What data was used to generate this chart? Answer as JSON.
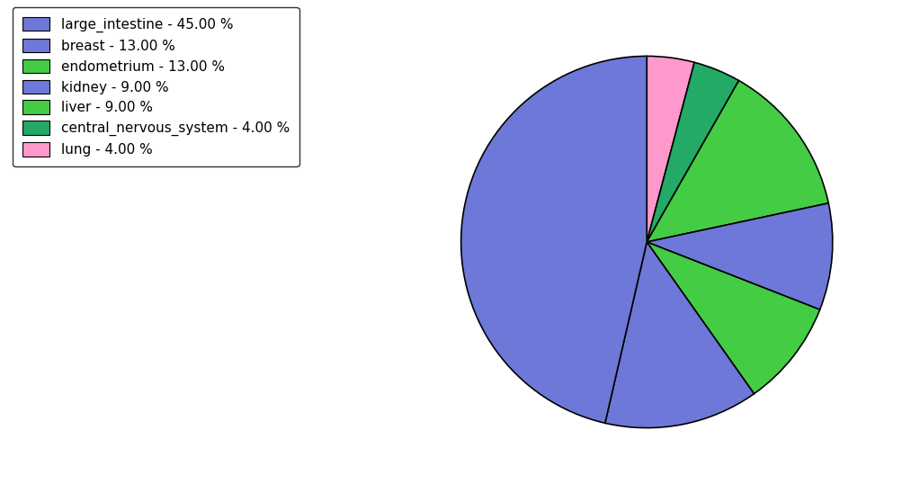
{
  "legend_labels": [
    "large_intestine - 45.00 %",
    "breast - 13.00 %",
    "endometrium - 13.00 %",
    "kidney - 9.00 %",
    "liver - 9.00 %",
    "central_nervous_system - 4.00 %",
    "lung - 4.00 %"
  ],
  "legend_colors": [
    "#6e78d8",
    "#6e78d8",
    "#44cc44",
    "#6e78d8",
    "#44cc44",
    "#22aa66",
    "#ff99cc"
  ],
  "wedge_order_values": [
    4.0,
    4.0,
    13.0,
    9.0,
    9.0,
    13.0,
    45.0
  ],
  "wedge_order_colors": [
    "#ff99cc",
    "#22aa66",
    "#44cc44",
    "#6e78d8",
    "#44cc44",
    "#6e78d8",
    "#6e78d8"
  ],
  "background_color": "#ffffff",
  "figsize": [
    10.13,
    5.38
  ],
  "dpi": 100
}
